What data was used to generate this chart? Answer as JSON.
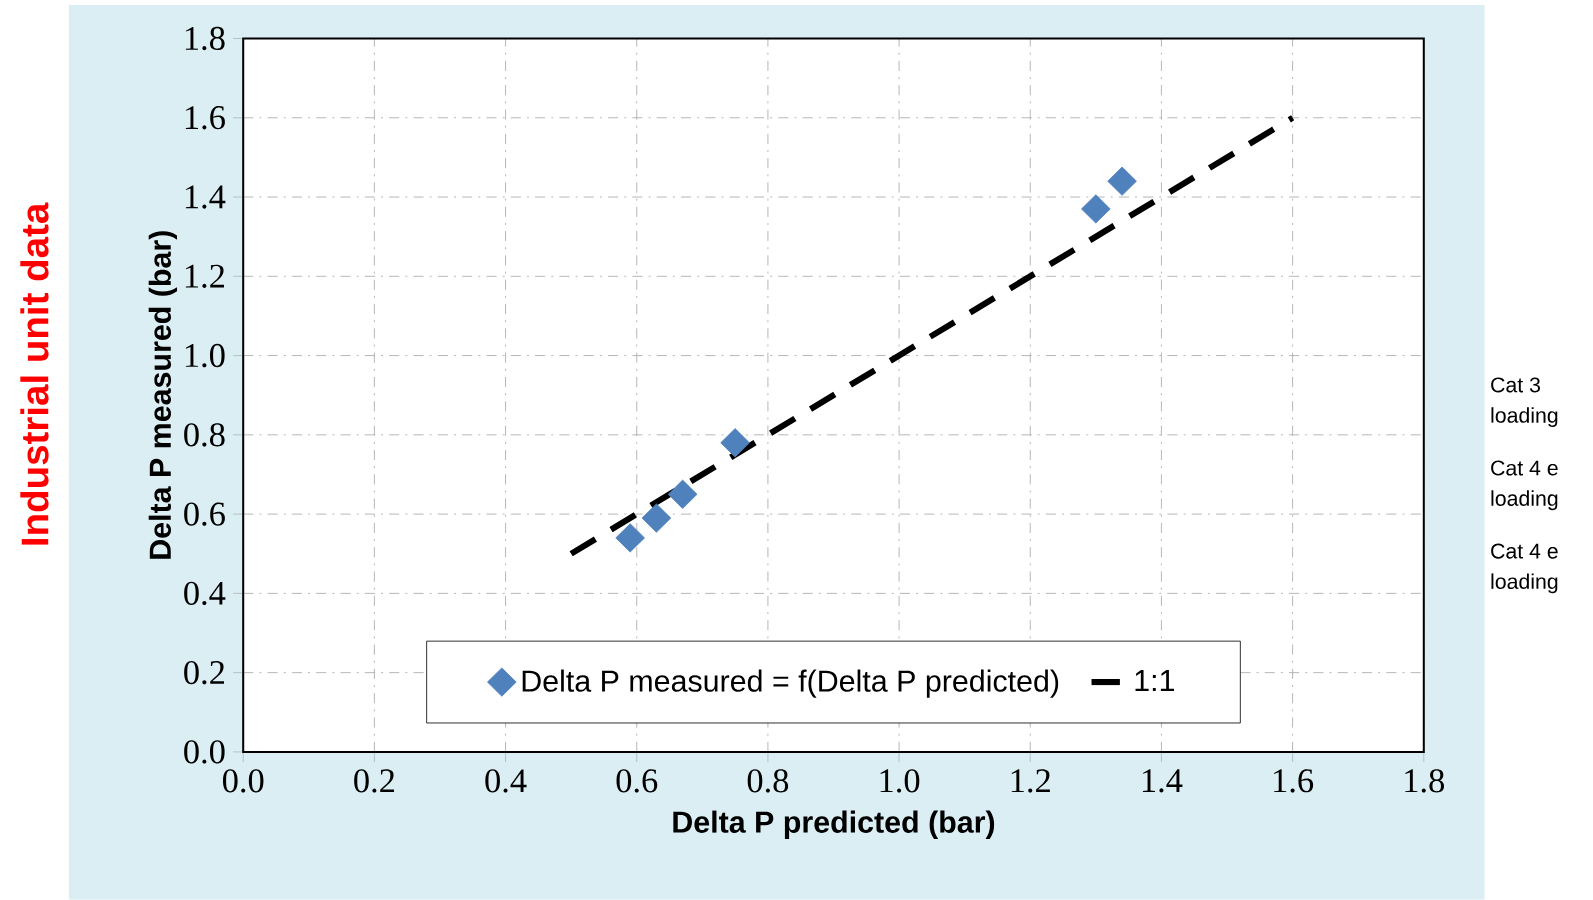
{
  "chart_data": {
    "type": "scatter",
    "xlabel": "Delta P predicted (bar)",
    "ylabel": "Delta P measured (bar)",
    "xlim": [
      0,
      1.8
    ],
    "ylim": [
      0,
      1.8
    ],
    "xticks": [
      {
        "value": 0,
        "label": "0.0"
      },
      0.2,
      0.4,
      0.6,
      0.8,
      {
        "value": 1,
        "label": "1.0"
      },
      1.2,
      1.4,
      1.6,
      1.8
    ],
    "yticks": [
      {
        "value": 0,
        "label": "0.0"
      },
      0.2,
      0.4,
      0.6,
      0.8,
      {
        "value": 1,
        "label": "1.0"
      },
      1.2,
      1.4,
      1.6,
      1.8
    ],
    "grid": true,
    "legend": "bottom",
    "series": [
      {
        "name": "Delta P measured = f(Delta P predicted)",
        "color": "#4f81bd",
        "marker": "diamond",
        "x": [
          0.59,
          0.63,
          0.67,
          0.75,
          1.3,
          1.34
        ],
        "values": [
          0.54,
          0.59,
          0.65,
          0.78,
          1.37,
          1.44
        ]
      },
      {
        "name": "1:1",
        "type": "line",
        "color": "#000000",
        "line_style": "dashed",
        "marker": "none",
        "x": [
          0.5,
          1.6
        ],
        "values": [
          0.5,
          1.6
        ]
      }
    ],
    "annotations": [
      "Industrial unit data",
      "Cat 3 loading",
      "Cat 4 e loading",
      "Cat 4 e loading"
    ]
  }
}
